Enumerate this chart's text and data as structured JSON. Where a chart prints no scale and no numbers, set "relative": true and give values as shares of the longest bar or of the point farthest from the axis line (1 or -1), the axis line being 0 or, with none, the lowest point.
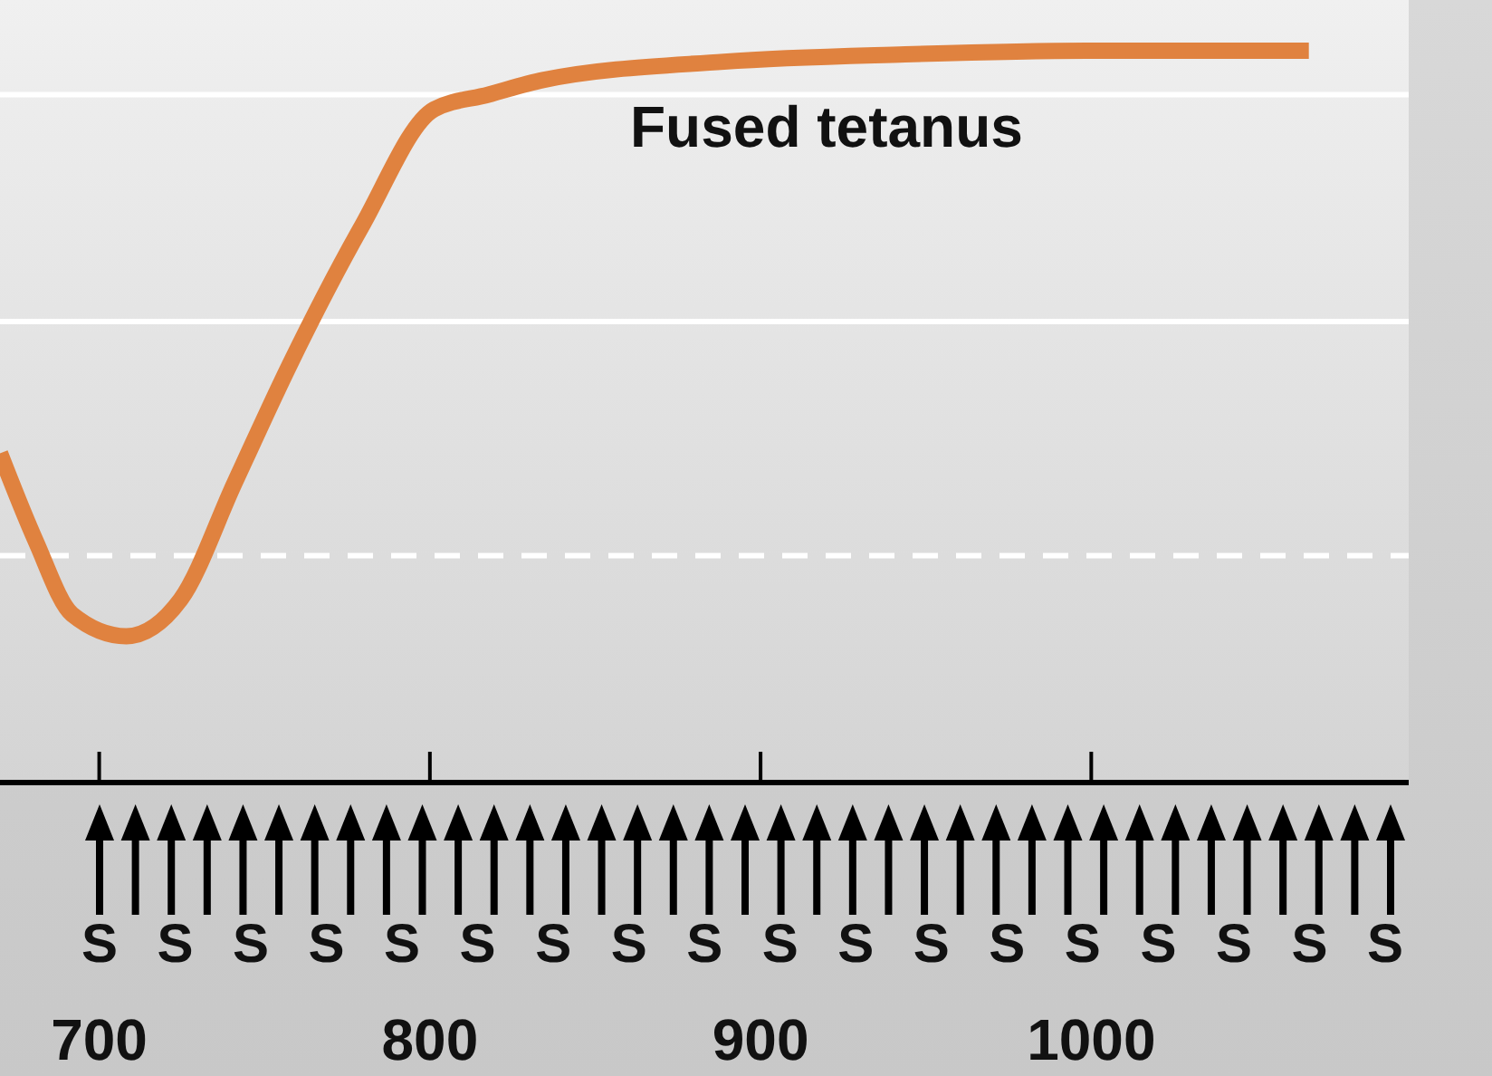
{
  "chart_data": {
    "type": "line",
    "relative": true,
    "xlim": [
      670,
      1096
    ],
    "xticks": [
      700,
      800,
      900,
      1000
    ],
    "marker": "none",
    "line_style": "solid",
    "series": [
      {
        "name": "Fused tetanus",
        "color": "#e0823f",
        "x": [
          670,
          680.8,
          691.8,
          708.2,
          724.6,
          741,
          757.5,
          779.4,
          801.3,
          817.7,
          834.2,
          888.9,
          943.7,
          998.5,
          1065.8
        ],
        "values": [
          0.45,
          0.33,
          0.23,
          0.2,
          0.25,
          0.41,
          0.57,
          0.76,
          0.92,
          0.94,
          0.96,
          0.985,
          0.995,
          1,
          1
        ]
      }
    ],
    "ref_lines": [
      {
        "axis": "y",
        "value": 0.94,
        "color": "#ffffff",
        "line_style": "solid"
      },
      {
        "axis": "y",
        "value": 0.63,
        "color": "#ffffff",
        "line_style": "solid"
      },
      {
        "axis": "y",
        "value": 0.31,
        "color": "#ffffff",
        "line_style": "dashed"
      }
    ],
    "annotations": [
      "S",
      "S",
      "S",
      "S",
      "S",
      "S",
      "S",
      "S",
      "S",
      "S",
      "S",
      "S",
      "S",
      "S",
      "S",
      "S",
      "S",
      "S"
    ]
  }
}
